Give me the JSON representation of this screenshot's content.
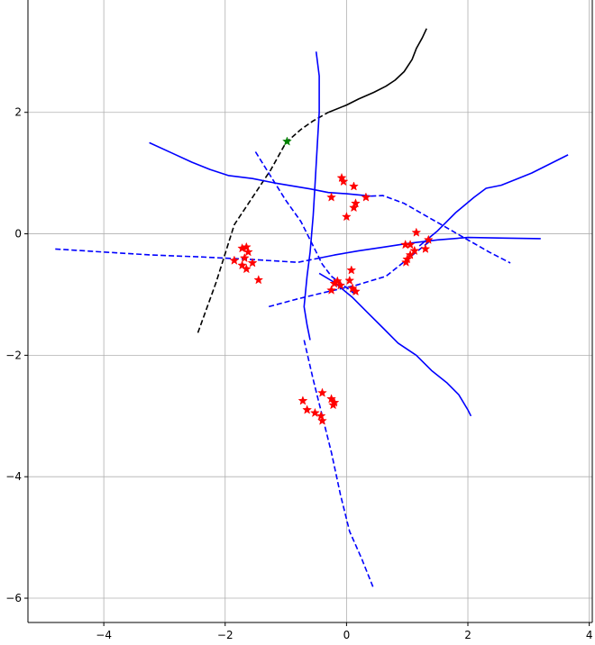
{
  "chart_data": {
    "type": "line",
    "title": "",
    "xlabel": "",
    "ylabel": "",
    "xlim": [
      -5.25,
      4.05
    ],
    "ylim": [
      -6.4,
      3.85
    ],
    "grid": true,
    "x_ticks": [
      -4,
      -2,
      0,
      2,
      4
    ],
    "y_ticks": [
      -6,
      -4,
      -2,
      0,
      2
    ],
    "x_tick_labels": [
      "−4",
      "−2",
      "0",
      "2",
      "4"
    ],
    "y_tick_labels": [
      "−6",
      "−4",
      "−2",
      "0",
      "2"
    ],
    "series": [
      {
        "color": "#000000",
        "style": "solid",
        "points": [
          [
            -0.3,
            2.0
          ],
          [
            0.0,
            2.12
          ],
          [
            0.2,
            2.22
          ],
          [
            0.45,
            2.33
          ],
          [
            0.65,
            2.43
          ],
          [
            0.8,
            2.53
          ],
          [
            0.95,
            2.67
          ],
          [
            1.08,
            2.87
          ],
          [
            1.15,
            3.05
          ],
          [
            1.25,
            3.23
          ],
          [
            1.32,
            3.38
          ]
        ]
      },
      {
        "color": "#000000",
        "style": "dashed",
        "points": [
          [
            -2.45,
            -1.63
          ],
          [
            -2.15,
            -0.8
          ],
          [
            -1.85,
            0.15
          ],
          [
            -1.55,
            0.6
          ],
          [
            -1.25,
            1.05
          ],
          [
            -1.0,
            1.5
          ],
          [
            -0.75,
            1.72
          ],
          [
            -0.55,
            1.86
          ],
          [
            -0.3,
            2.0
          ]
        ]
      },
      {
        "color": "#0000ff",
        "style": "solid",
        "points": [
          [
            -3.25,
            1.5
          ],
          [
            -2.9,
            1.34
          ],
          [
            -2.55,
            1.18
          ],
          [
            -2.25,
            1.06
          ],
          [
            -1.95,
            0.96
          ],
          [
            -1.55,
            0.91
          ],
          [
            -1.2,
            0.84
          ],
          [
            -0.9,
            0.79
          ],
          [
            -0.6,
            0.74
          ],
          [
            -0.3,
            0.68
          ],
          [
            0.0,
            0.66
          ],
          [
            0.4,
            0.62
          ]
        ]
      },
      {
        "color": "#0000ff",
        "style": "solid",
        "points": [
          [
            -0.5,
            3.0
          ],
          [
            -0.45,
            2.6
          ],
          [
            -0.45,
            2.0
          ],
          [
            -0.48,
            1.5
          ],
          [
            -0.52,
            0.8
          ],
          [
            -0.55,
            0.3
          ],
          [
            -0.6,
            -0.3
          ],
          [
            -0.65,
            -0.7
          ],
          [
            -0.7,
            -1.2
          ],
          [
            -0.65,
            -1.5
          ],
          [
            -0.6,
            -1.75
          ]
        ]
      },
      {
        "color": "#0000ff",
        "style": "solid",
        "points": [
          [
            -0.45,
            -0.4
          ],
          [
            -0.2,
            -0.35
          ],
          [
            0.2,
            -0.28
          ],
          [
            0.6,
            -0.22
          ],
          [
            1.0,
            -0.16
          ],
          [
            1.5,
            -0.1
          ],
          [
            2.0,
            -0.06
          ],
          [
            2.6,
            -0.07
          ],
          [
            3.2,
            -0.08
          ]
        ]
      },
      {
        "color": "#0000ff",
        "style": "solid",
        "points": [
          [
            1.2,
            -0.2
          ],
          [
            1.5,
            0.05
          ],
          [
            1.8,
            0.35
          ],
          [
            2.1,
            0.6
          ],
          [
            2.3,
            0.75
          ],
          [
            2.55,
            0.8
          ],
          [
            2.8,
            0.9
          ],
          [
            3.05,
            1.0
          ],
          [
            3.35,
            1.15
          ],
          [
            3.65,
            1.3
          ]
        ]
      },
      {
        "color": "#0000ff",
        "style": "solid",
        "points": [
          [
            -0.45,
            -0.65
          ],
          [
            -0.2,
            -0.8
          ],
          [
            0.1,
            -1.05
          ],
          [
            0.35,
            -1.3
          ],
          [
            0.6,
            -1.55
          ],
          [
            0.85,
            -1.8
          ],
          [
            1.15,
            -2.0
          ],
          [
            1.4,
            -2.25
          ],
          [
            1.65,
            -2.45
          ],
          [
            1.85,
            -2.65
          ],
          [
            2.0,
            -2.9
          ],
          [
            2.05,
            -3.0
          ]
        ]
      },
      {
        "color": "#0000ff",
        "style": "dashed",
        "points": [
          [
            -4.8,
            -0.25
          ],
          [
            -4.0,
            -0.3
          ],
          [
            -3.2,
            -0.35
          ],
          [
            -2.4,
            -0.38
          ],
          [
            -1.6,
            -0.42
          ],
          [
            -0.8,
            -0.47
          ],
          [
            -0.45,
            -0.4
          ]
        ]
      },
      {
        "color": "#0000ff",
        "style": "dashed",
        "points": [
          [
            0.4,
            0.62
          ],
          [
            0.6,
            0.63
          ],
          [
            0.95,
            0.5
          ],
          [
            1.3,
            0.3
          ],
          [
            1.65,
            0.1
          ],
          [
            2.0,
            -0.1
          ],
          [
            2.35,
            -0.3
          ],
          [
            2.7,
            -0.48
          ]
        ]
      },
      {
        "color": "#0000ff",
        "style": "dashed",
        "points": [
          [
            -1.5,
            1.35
          ],
          [
            -1.25,
            0.95
          ],
          [
            -1.0,
            0.55
          ],
          [
            -0.75,
            0.2
          ],
          [
            -0.55,
            -0.2
          ],
          [
            -0.4,
            -0.5
          ],
          [
            -0.25,
            -0.7
          ],
          [
            -0.05,
            -0.85
          ],
          [
            0.15,
            -1.0
          ]
        ]
      },
      {
        "color": "#0000ff",
        "style": "dashed",
        "points": [
          [
            -1.28,
            -1.2
          ],
          [
            -0.8,
            -1.07
          ],
          [
            -0.3,
            -0.95
          ],
          [
            0.15,
            -0.85
          ],
          [
            0.65,
            -0.7
          ],
          [
            0.9,
            -0.5
          ],
          [
            1.15,
            -0.3
          ],
          [
            1.4,
            -0.1
          ]
        ]
      },
      {
        "color": "#0000ff",
        "style": "dashed",
        "points": [
          [
            -0.7,
            -1.75
          ],
          [
            -0.55,
            -2.4
          ],
          [
            -0.4,
            -3.0
          ],
          [
            -0.25,
            -3.6
          ],
          [
            -0.1,
            -4.3
          ],
          [
            0.05,
            -4.9
          ],
          [
            0.25,
            -5.35
          ],
          [
            0.45,
            -5.85
          ]
        ]
      }
    ],
    "markers_red": [
      [
        -0.08,
        0.92
      ],
      [
        -0.05,
        0.86
      ],
      [
        0.12,
        0.78
      ],
      [
        -0.25,
        0.6
      ],
      [
        0.15,
        0.5
      ],
      [
        0.32,
        0.6
      ],
      [
        0.12,
        0.43
      ],
      [
        0.0,
        0.28
      ],
      [
        -1.72,
        -0.24
      ],
      [
        -1.65,
        -0.22
      ],
      [
        -1.62,
        -0.3
      ],
      [
        -1.68,
        -0.4
      ],
      [
        -1.85,
        -0.44
      ],
      [
        -1.55,
        -0.48
      ],
      [
        -1.72,
        -0.52
      ],
      [
        -1.65,
        -0.58
      ],
      [
        -1.45,
        -0.76
      ],
      [
        1.15,
        0.02
      ],
      [
        0.97,
        -0.18
      ],
      [
        1.05,
        -0.18
      ],
      [
        1.35,
        -0.1
      ],
      [
        1.12,
        -0.28
      ],
      [
        1.3,
        -0.25
      ],
      [
        1.05,
        -0.35
      ],
      [
        1.0,
        -0.42
      ],
      [
        0.98,
        -0.47
      ],
      [
        0.08,
        -0.6
      ],
      [
        -0.2,
        -0.82
      ],
      [
        -0.15,
        -0.78
      ],
      [
        -0.1,
        -0.85
      ],
      [
        0.05,
        -0.77
      ],
      [
        -0.25,
        -0.93
      ],
      [
        0.1,
        -0.9
      ],
      [
        0.15,
        -0.95
      ],
      [
        -0.4,
        -2.62
      ],
      [
        -0.25,
        -2.72
      ],
      [
        -0.72,
        -2.75
      ],
      [
        -0.2,
        -2.78
      ],
      [
        -0.22,
        -2.82
      ],
      [
        -0.65,
        -2.9
      ],
      [
        -0.52,
        -2.95
      ],
      [
        -0.42,
        -3.0
      ],
      [
        -0.4,
        -3.08
      ]
    ],
    "markers_green": [
      [
        -0.98,
        1.52
      ]
    ]
  }
}
